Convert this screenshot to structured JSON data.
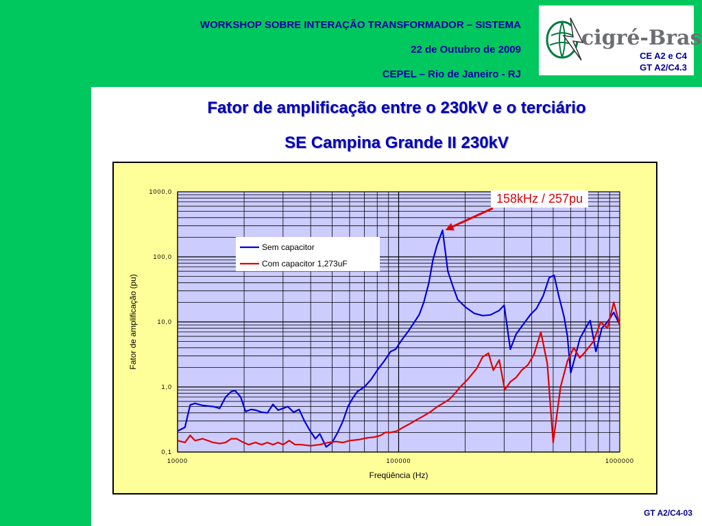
{
  "header": {
    "line1": "WORKSHOP SOBRE INTERAÇÃO TRANSFORMADOR – SISTEMA",
    "line2": "22 de Outubro de 2009",
    "line3": "CEPEL – Rio de Janeiro - RJ"
  },
  "logo": {
    "text": "cigré-Brasil",
    "sub1": "CE A2 e C4",
    "sub2": "GT A2/C4.3"
  },
  "titles": {
    "main": "Fator de amplificação entre o 230kV e o terciário",
    "sub": "SE Campina Grande II 230kV"
  },
  "annotation": "158kHz / 257pu",
  "footer": "GT A2/C4-03",
  "colors": {
    "background": "#00C85F",
    "plot_area": "#CCCCFF",
    "chart_bg": "#FFFF99",
    "series_blue": "#0000E0",
    "series_red": "#E00000",
    "title": "#0000C0"
  },
  "chart_data": {
    "type": "line",
    "xlabel": "Freqüência (Hz)",
    "ylabel": "Fator de amplificação (pu)",
    "x_scale": "log",
    "y_scale": "log",
    "xlim": [
      10000,
      1000000
    ],
    "ylim": [
      0.1,
      1000
    ],
    "x_ticks": [
      {
        "value": 10000,
        "label": "10000"
      },
      {
        "value": 100000,
        "label": "100000"
      },
      {
        "value": 1000000,
        "label": "1000000"
      }
    ],
    "y_ticks": [
      {
        "value": 0.1,
        "label": "0,1"
      },
      {
        "value": 1,
        "label": "1,0"
      },
      {
        "value": 10,
        "label": "10,0"
      },
      {
        "value": 100,
        "label": "100,0"
      },
      {
        "value": 1000,
        "label": "1000,0"
      }
    ],
    "grid": true,
    "legend_position": "upper-left",
    "series": [
      {
        "name": "Sem capacitor",
        "color": "#0000E0",
        "points": [
          [
            10000,
            0.21
          ],
          [
            10800,
            0.24
          ],
          [
            11400,
            0.53
          ],
          [
            12000,
            0.56
          ],
          [
            13000,
            0.52
          ],
          [
            14500,
            0.5
          ],
          [
            15500,
            0.47
          ],
          [
            16500,
            0.7
          ],
          [
            17500,
            0.85
          ],
          [
            18200,
            0.88
          ],
          [
            19300,
            0.7
          ],
          [
            20300,
            0.42
          ],
          [
            21500,
            0.45
          ],
          [
            22600,
            0.44
          ],
          [
            24000,
            0.41
          ],
          [
            25500,
            0.4
          ],
          [
            27000,
            0.54
          ],
          [
            28500,
            0.44
          ],
          [
            30000,
            0.47
          ],
          [
            31500,
            0.5
          ],
          [
            33500,
            0.41
          ],
          [
            35500,
            0.45
          ],
          [
            37500,
            0.3
          ],
          [
            39500,
            0.22
          ],
          [
            42000,
            0.16
          ],
          [
            44000,
            0.19
          ],
          [
            47000,
            0.12
          ],
          [
            50000,
            0.14
          ],
          [
            53000,
            0.2
          ],
          [
            56000,
            0.3
          ],
          [
            59000,
            0.5
          ],
          [
            62000,
            0.67
          ],
          [
            65000,
            0.85
          ],
          [
            70000,
            1.0
          ],
          [
            75000,
            1.3
          ],
          [
            80000,
            1.8
          ],
          [
            86000,
            2.5
          ],
          [
            92000,
            3.5
          ],
          [
            97000,
            3.8
          ],
          [
            103000,
            5.2
          ],
          [
            110000,
            7.0
          ],
          [
            118000,
            10
          ],
          [
            124000,
            13
          ],
          [
            130000,
            20
          ],
          [
            137000,
            40
          ],
          [
            143000,
            90
          ],
          [
            149000,
            150
          ],
          [
            158000,
            257
          ],
          [
            167000,
            60
          ],
          [
            176000,
            35
          ],
          [
            185000,
            22
          ],
          [
            200000,
            17
          ],
          [
            220000,
            13.5
          ],
          [
            240000,
            12.5
          ],
          [
            260000,
            12.8
          ],
          [
            285000,
            15
          ],
          [
            300000,
            18
          ],
          [
            320000,
            3.8
          ],
          [
            340000,
            6.5
          ],
          [
            365000,
            9
          ],
          [
            395000,
            13
          ],
          [
            420000,
            16
          ],
          [
            450000,
            25
          ],
          [
            480000,
            48
          ],
          [
            505000,
            52
          ],
          [
            530000,
            25
          ],
          [
            560000,
            12
          ],
          [
            580000,
            6
          ],
          [
            600000,
            1.65
          ],
          [
            630000,
            3.0
          ],
          [
            660000,
            5.5
          ],
          [
            700000,
            8
          ],
          [
            735000,
            10.5
          ],
          [
            780000,
            3.5
          ],
          [
            830000,
            8
          ],
          [
            880000,
            10
          ],
          [
            940000,
            14
          ],
          [
            1000000,
            9
          ]
        ]
      },
      {
        "name": "Com capacitor 1,273uF",
        "color": "#E00000",
        "points": [
          [
            10000,
            0.15
          ],
          [
            10800,
            0.14
          ],
          [
            11400,
            0.18
          ],
          [
            12000,
            0.15
          ],
          [
            13000,
            0.16
          ],
          [
            14500,
            0.14
          ],
          [
            15500,
            0.135
          ],
          [
            16500,
            0.14
          ],
          [
            17500,
            0.16
          ],
          [
            18500,
            0.16
          ],
          [
            19500,
            0.145
          ],
          [
            21000,
            0.13
          ],
          [
            22500,
            0.14
          ],
          [
            24000,
            0.13
          ],
          [
            25500,
            0.14
          ],
          [
            27000,
            0.13
          ],
          [
            28500,
            0.14
          ],
          [
            30000,
            0.13
          ],
          [
            32000,
            0.15
          ],
          [
            34000,
            0.13
          ],
          [
            36000,
            0.13
          ],
          [
            40000,
            0.125
          ],
          [
            44000,
            0.13
          ],
          [
            48000,
            0.14
          ],
          [
            52000,
            0.145
          ],
          [
            56000,
            0.14
          ],
          [
            60000,
            0.15
          ],
          [
            66000,
            0.155
          ],
          [
            72000,
            0.165
          ],
          [
            78000,
            0.17
          ],
          [
            83000,
            0.18
          ],
          [
            87000,
            0.2
          ],
          [
            92000,
            0.2
          ],
          [
            98000,
            0.21
          ],
          [
            105000,
            0.24
          ],
          [
            112000,
            0.27
          ],
          [
            120000,
            0.31
          ],
          [
            130000,
            0.36
          ],
          [
            140000,
            0.42
          ],
          [
            150000,
            0.5
          ],
          [
            160000,
            0.57
          ],
          [
            170000,
            0.65
          ],
          [
            180000,
            0.8
          ],
          [
            190000,
            1.0
          ],
          [
            205000,
            1.3
          ],
          [
            225000,
            1.9
          ],
          [
            240000,
            2.9
          ],
          [
            255000,
            3.3
          ],
          [
            268000,
            1.8
          ],
          [
            285000,
            2.6
          ],
          [
            302000,
            0.9
          ],
          [
            320000,
            1.2
          ],
          [
            340000,
            1.4
          ],
          [
            360000,
            1.8
          ],
          [
            385000,
            2.2
          ],
          [
            410000,
            3.2
          ],
          [
            440000,
            7.0
          ],
          [
            470000,
            2.3
          ],
          [
            500000,
            0.14
          ],
          [
            540000,
            1.0
          ],
          [
            580000,
            2.5
          ],
          [
            620000,
            4.0
          ],
          [
            660000,
            2.8
          ],
          [
            700000,
            3.5
          ],
          [
            760000,
            5.0
          ],
          [
            820000,
            10
          ],
          [
            880000,
            8
          ],
          [
            940000,
            20
          ],
          [
            1000000,
            9
          ]
        ]
      }
    ]
  }
}
